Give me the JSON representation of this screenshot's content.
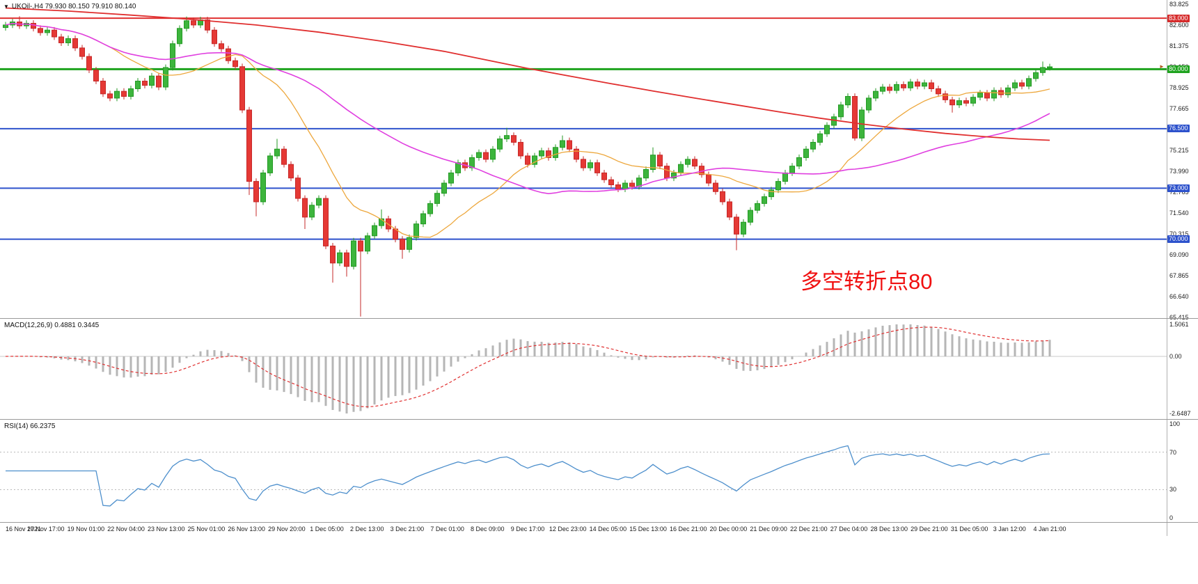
{
  "header": {
    "symbol_dropdown_icon": "▼",
    "title": "UKOil-,H4  79.930 80.150 79.910 80.140"
  },
  "chart_data": {
    "type": "candlestick",
    "symbol": "UKOil-",
    "timeframe": "H4",
    "current_ohlc": {
      "open": "79.930",
      "high": "80.150",
      "low": "79.910",
      "close": "80.140"
    },
    "axis": {
      "top_price": 84.07,
      "bottom_price": 65.36,
      "labels": [
        "83.825",
        "82.600",
        "81.375",
        "80.150",
        "78.925",
        "77.665",
        "76.440",
        "75.215",
        "73.990",
        "72.765",
        "71.540",
        "70.315",
        "69.090",
        "67.865",
        "66.640",
        "65.415"
      ]
    },
    "time_labels": [
      "16 Nov 2021",
      "17 Nov 17:00",
      "19 Nov 01:00",
      "22 Nov 04:00",
      "23 Nov 13:00",
      "25 Nov 01:00",
      "26 Nov 13:00",
      "29 Nov 20:00",
      "1 Dec 05:00",
      "2 Dec 13:00",
      "3 Dec 21:00",
      "7 Dec 01:00",
      "8 Dec 09:00",
      "9 Dec 17:00",
      "12 Dec 23:00",
      "14 Dec 05:00",
      "15 Dec 13:00",
      "16 Dec 21:00",
      "20 Dec 00:00",
      "21 Dec 09:00",
      "22 Dec 21:00",
      "27 Dec 04:00",
      "28 Dec 13:00",
      "29 Dec 21:00",
      "31 Dec 05:00",
      "3 Jan 12:00",
      "4 Jan 21:00"
    ],
    "candles": {
      "first_open": 82.45,
      "default_wick": 0.18,
      "closes": [
        82.6,
        82.78,
        82.55,
        82.7,
        82.4,
        82.15,
        82.3,
        81.9,
        81.55,
        81.8,
        81.25,
        80.75,
        79.95,
        79.3,
        78.55,
        78.3,
        78.7,
        78.4,
        78.85,
        79.3,
        79.05,
        79.6,
        78.95,
        80.1,
        81.5,
        82.4,
        82.85,
        82.6,
        82.9,
        82.3,
        81.5,
        81.2,
        80.5,
        80.15,
        77.6,
        73.4,
        72.2,
        73.9,
        74.9,
        75.3,
        74.4,
        73.6,
        72.4,
        71.3,
        72.0,
        72.4,
        69.6,
        68.6,
        69.2,
        68.4,
        69.9,
        69.3,
        70.2,
        70.8,
        71.2,
        70.6,
        70.0,
        69.4,
        70.1,
        70.9,
        71.5,
        72.1,
        72.7,
        73.3,
        73.9,
        74.5,
        74.2,
        74.8,
        75.1,
        74.7,
        75.3,
        75.9,
        76.1,
        75.7,
        74.9,
        74.4,
        74.9,
        75.2,
        74.8,
        75.4,
        75.8,
        75.3,
        74.7,
        74.2,
        74.5,
        73.9,
        73.5,
        73.2,
        72.95,
        73.3,
        73.1,
        73.6,
        74.1,
        74.95,
        74.3,
        73.6,
        73.9,
        74.4,
        74.7,
        74.3,
        73.8,
        73.3,
        72.8,
        72.2,
        71.3,
        70.3,
        71.0,
        71.7,
        72.1,
        72.5,
        72.9,
        73.4,
        73.9,
        74.3,
        74.8,
        75.3,
        75.7,
        76.2,
        76.7,
        77.2,
        77.9,
        78.4,
        75.95,
        77.6,
        78.3,
        78.7,
        78.95,
        78.75,
        79.1,
        78.9,
        79.25,
        79.0,
        79.2,
        78.85,
        78.55,
        78.2,
        77.9,
        78.15,
        78.0,
        78.35,
        78.6,
        78.3,
        78.75,
        78.5,
        78.9,
        79.2,
        79.0,
        79.45,
        79.8,
        80.1,
        80.14
      ],
      "wick_high": {
        "2": 83.12,
        "26": 83.1,
        "28": 83.08,
        "39": 75.9,
        "54": 71.75,
        "72": 76.55,
        "80": 76.1,
        "93": 75.4,
        "149": 80.45
      },
      "wick_low": {
        "35": 72.6,
        "36": 71.35,
        "43": 70.6,
        "47": 67.45,
        "49": 67.8,
        "51": 65.45,
        "57": 68.85,
        "105": 69.35,
        "122": 75.8,
        "136": 77.45
      }
    },
    "hlines": [
      {
        "value": 83.0,
        "color": "#e02f2f",
        "width": 2,
        "label": "83.000",
        "badge_bg": "#d62b2b"
      },
      {
        "value": 80.0,
        "color": "#1ea31e",
        "width": 3,
        "label": "80.000",
        "badge_bg": "#1ea31e"
      },
      {
        "value": 76.5,
        "color": "#2d52cc",
        "width": 2,
        "label": "76.500",
        "badge_bg": "#2d52cc"
      },
      {
        "value": 73.0,
        "color": "#2d52cc",
        "width": 2,
        "label": "73.000",
        "badge_bg": "#2d52cc"
      },
      {
        "value": 70.0,
        "color": "#2d52cc",
        "width": 2,
        "label": "70.000",
        "badge_bg": "#2d52cc"
      }
    ],
    "current_price": {
      "value": 80.14,
      "marker_icon": "►",
      "marker_color": "#b05a1e"
    },
    "moving_averages": {
      "fast_period": 16,
      "mid_period": 44,
      "slow_points": [
        [
          0,
          83.6
        ],
        [
          0.06,
          83.42
        ],
        [
          0.12,
          83.18
        ],
        [
          0.18,
          82.92
        ],
        [
          0.24,
          82.6
        ],
        [
          0.3,
          82.18
        ],
        [
          0.36,
          81.65
        ],
        [
          0.42,
          81.05
        ],
        [
          0.46,
          80.55
        ],
        [
          0.5,
          80.05
        ],
        [
          0.54,
          79.6
        ],
        [
          0.58,
          79.15
        ],
        [
          0.62,
          78.72
        ],
        [
          0.66,
          78.3
        ],
        [
          0.7,
          77.9
        ],
        [
          0.74,
          77.5
        ],
        [
          0.78,
          77.12
        ],
        [
          0.82,
          76.78
        ],
        [
          0.86,
          76.48
        ],
        [
          0.9,
          76.22
        ],
        [
          0.94,
          76.02
        ],
        [
          0.97,
          75.9
        ],
        [
          1.0,
          75.82
        ]
      ]
    },
    "colors": {
      "up_fill": "#3db53d",
      "up_stroke": "#249a24",
      "down_fill": "#e53935",
      "down_stroke": "#c62828",
      "ma_fast": "#eda73c",
      "ma_mid": "#e040e0",
      "ma_slow": "#e02f2f"
    },
    "macd": {
      "label": "MACD(12,26,9) 0.4881 0.3445",
      "values": [
        "0.4881",
        "0.3445"
      ],
      "axis": [
        "1.5061",
        "0.00",
        "-2.6487"
      ],
      "histogram_color": "#b6b6b6",
      "signal_color": "#e03030"
    },
    "rsi": {
      "label": "RSI(14) 66.2375",
      "value": "66.2375",
      "axis": [
        "100",
        "70",
        "30",
        "0"
      ],
      "levels": [
        70,
        30
      ],
      "line_color": "#4d8fcc"
    },
    "annotation": {
      "text": "多空转折点80",
      "color": "#f01010"
    }
  }
}
